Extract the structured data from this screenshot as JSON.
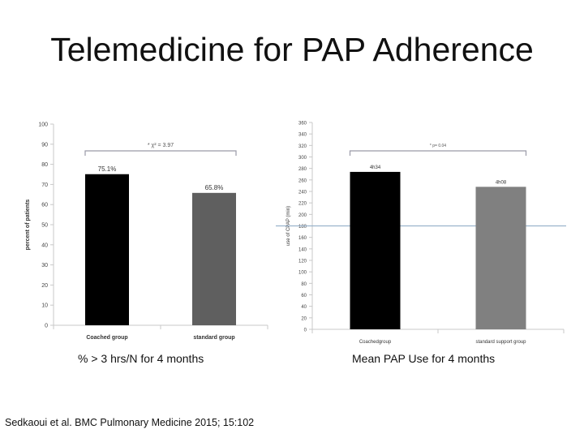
{
  "title": "Telemedicine for PAP Adherence",
  "captions": {
    "left": "% > 3 hrs/N for 4 months",
    "right": "Mean PAP Use for 4 months"
  },
  "citation": "Sedkaoui et al. BMC Pulmonary Medicine 2015; 15:102",
  "colors": {
    "coached": "#000000",
    "standard_left": "#5f5f5f",
    "standard_right": "#808080",
    "reference_line": "#9ab3cc",
    "bracket": "#9a9aa8"
  },
  "chart_data": [
    {
      "type": "bar",
      "categories": [
        "Coached group",
        "standard group"
      ],
      "values": [
        75.1,
        65.8
      ],
      "data_labels": [
        "75.1%",
        "65.8%"
      ],
      "ylabel": "percent of patients",
      "ylim": [
        0,
        100
      ],
      "yticks": [
        0,
        10,
        20,
        30,
        40,
        50,
        60,
        70,
        80,
        90,
        100
      ],
      "significance": "* χ² = 3.97",
      "grid": false
    },
    {
      "type": "bar",
      "categories": [
        "Coachedgroup",
        "standard support group"
      ],
      "values": [
        274,
        248
      ],
      "data_labels": [
        "4h34",
        "4h08"
      ],
      "ylabel": "use of CPAP (min)",
      "ylim": [
        0,
        360
      ],
      "yticks": [
        0,
        20,
        40,
        60,
        80,
        100,
        120,
        140,
        160,
        180,
        200,
        220,
        240,
        260,
        280,
        300,
        320,
        340,
        360
      ],
      "significance": "* p= 0.04",
      "reference_line": 180,
      "grid": false
    }
  ]
}
